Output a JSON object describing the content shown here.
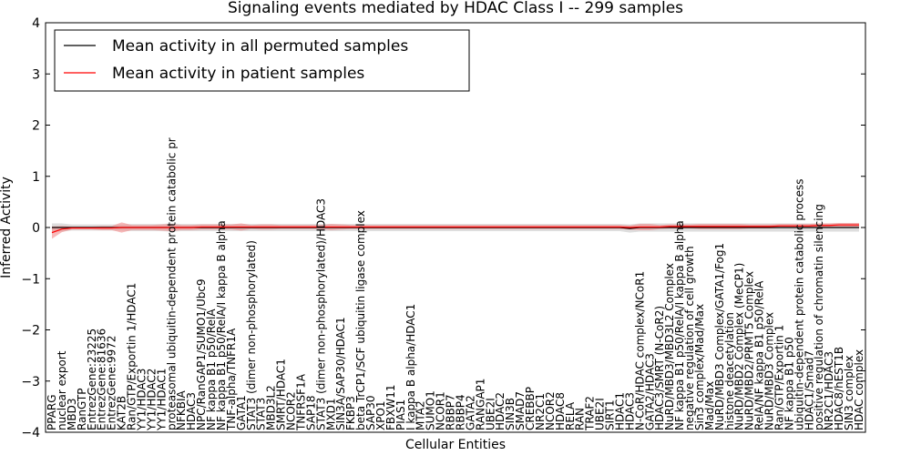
{
  "chart_data": {
    "type": "line",
    "title": "Signaling events mediated by HDAC Class I -- 299 samples",
    "xlabel": "Cellular Entities",
    "ylabel": "Inferred Activity",
    "ylim": [
      -4,
      4
    ],
    "yticks": [
      "4",
      "3",
      "2",
      "1",
      "0",
      "−1",
      "−2",
      "−3",
      "−4"
    ],
    "grid": false,
    "legend_position": "top-left",
    "colors": {
      "permuted": "#000000",
      "patient": "#ff0000",
      "patient_band": "#f08080",
      "permuted_band": "#c8c8c8"
    },
    "categories": [
      "PPARG",
      "nuclear export",
      "MBD3",
      "RanGTP",
      "EntrezGene:23225",
      "EntrezGene:81636",
      "EntrezGene:9972",
      "KAT2B",
      "Ran/GTP/Exportin 1/HDAC1",
      "YY1/HDAC3",
      "YY1/HDAC2",
      "YY1/HDAC1",
      "proteasomal ubiquitin-dependent protein catabolic pr",
      "NFKBIA",
      "HDAC3",
      "NPC/RanGAP1/SUMO1/Ubc9",
      "NF kappa B1 p50/RelA",
      "NF kappa B1 p50/RelA/I kappa B alpha",
      "TNF-alpha/TNFR1A",
      "GATA1",
      "STAT3 (dimer non-phosphorylated)",
      "STAT3",
      "MBD3L2",
      "SMRT/HDAC1",
      "NCOR2",
      "TNFRSF1A",
      "SAP18",
      "STAT3 (dimer non-phosphorylated)/HDAC3",
      "MXD1",
      "SIN3A/SAP30/HDAC1",
      "FKBP3",
      "beta TrCP1/SCF ubiquitin ligase complex",
      "SAP30",
      "XPO1",
      "FBXW11",
      "PIAS1",
      "I kappa B alpha/HDAC1",
      "MTA2",
      "SUMO1",
      "NCOR1",
      "RBBP7",
      "RBBP4",
      "GATA2",
      "RANGAP1",
      "UBE2I",
      "HDAC2",
      "SIN3B",
      "SMAD7",
      "CREBBP",
      "NR2C1",
      "NCOR2",
      "HDAC8",
      "RELA",
      "RAN",
      "TRAF2",
      "UBE2I",
      "SIRT1",
      "HDAC1",
      "HDAC3",
      "N-CoR/HDAC complex/NCoR1",
      "GATA2/HDAC3",
      "HDAC3/SMRT (N-CoR2)",
      "NuRD/MBD3/MBD3L2 Complex",
      "NF kappa B1 p50/RelA/I kappa B alpha",
      "negative regulation of cell growth",
      "Sin3 complex/Mad/Max",
      "Mad/Max",
      "NuRD/MBD3 Complex/GATA1/Fog1",
      "histone deacetylation",
      "NuRD/MBD2 Complex (MeCP1)",
      "NuRD/MBD2/PRMT5 Complex",
      "RelA/NF kappa B1 p50/RelA",
      "NuRD/MBD3 Complex",
      "Ran/GTP/Exportin 1",
      "NF kappa B1 p50",
      "ubiquitin-dependent protein catabolic process",
      "HDAC1/Smad7",
      "positive regulation of chromatin silencing",
      "NR2C1/HDAC3",
      "HDAC8/hEST1B",
      "SIN3 complex",
      "HDAC complex"
    ],
    "series": [
      {
        "name": "Mean activity in all permuted samples",
        "values": [
          0,
          0,
          0,
          0,
          0,
          0,
          0,
          0,
          0,
          0,
          0,
          0,
          0,
          0,
          0,
          0,
          0,
          0,
          0,
          0,
          0,
          0,
          0,
          0,
          0,
          0,
          0,
          0,
          0,
          0,
          0,
          0,
          0,
          0,
          0,
          0,
          0,
          0,
          0,
          0,
          0,
          0,
          0,
          0,
          0,
          0,
          0,
          0,
          0,
          0,
          0,
          0,
          0,
          0,
          0,
          0,
          0,
          0,
          -0.02,
          0,
          0,
          0,
          0,
          0,
          0,
          0,
          0,
          0,
          0,
          0,
          0,
          0,
          0,
          0,
          0,
          0,
          0,
          0,
          0,
          0,
          0,
          0
        ],
        "band": [
          0.08,
          0.08,
          0.06,
          0.06,
          0.06,
          0.06,
          0.06,
          0.06,
          0.07,
          0.07,
          0.07,
          0.07,
          0.08,
          0.07,
          0.07,
          0.07,
          0.07,
          0.07,
          0.07,
          0.07,
          0.07,
          0.07,
          0.07,
          0.07,
          0.07,
          0.07,
          0.07,
          0.07,
          0.07,
          0.07,
          0.07,
          0.07,
          0.07,
          0.07,
          0.07,
          0.07,
          0.07,
          0.07,
          0.07,
          0.07,
          0.07,
          0.07,
          0.07,
          0.07,
          0.07,
          0.07,
          0.07,
          0.07,
          0.07,
          0.07,
          0.07,
          0.07,
          0.07,
          0.07,
          0.07,
          0.07,
          0.07,
          0.07,
          0.08,
          0.08,
          0.08,
          0.08,
          0.08,
          0.08,
          0.08,
          0.08,
          0.08,
          0.08,
          0.08,
          0.08,
          0.08,
          0.08,
          0.08,
          0.08,
          0.08,
          0.08,
          0.08,
          0.08,
          0.08,
          0.08,
          0.08,
          0.08
        ]
      },
      {
        "name": "Mean activity in patient samples",
        "values": [
          -0.1,
          -0.03,
          -0.01,
          -0.01,
          -0.01,
          -0.01,
          -0.01,
          0,
          0,
          0,
          0,
          0,
          0,
          0,
          0,
          0.01,
          0.01,
          0.01,
          0.01,
          0.01,
          0.01,
          0.01,
          0.01,
          0.01,
          0.01,
          0.01,
          0.01,
          0.01,
          0.01,
          0.01,
          0.01,
          0.01,
          0.01,
          0.01,
          0.01,
          0.01,
          0.01,
          0.01,
          0.01,
          0.01,
          0.01,
          0.01,
          0.01,
          0.01,
          0.01,
          0.01,
          0.01,
          0.01,
          0.01,
          0.01,
          0.01,
          0.01,
          0.01,
          0.01,
          0.01,
          0.01,
          0.01,
          0.01,
          0,
          0.01,
          0.01,
          0.01,
          0.02,
          0.02,
          0.02,
          0.02,
          0.02,
          0.02,
          0.02,
          0.02,
          0.02,
          0.02,
          0.02,
          0.03,
          0.03,
          0.03,
          0.03,
          0.04,
          0.04,
          0.05,
          0.05,
          0.05
        ],
        "band": [
          0.12,
          0.06,
          0.03,
          0.03,
          0.03,
          0.04,
          0.04,
          0.1,
          0.05,
          0.05,
          0.05,
          0.06,
          0.07,
          0.05,
          0.05,
          0.05,
          0.05,
          0.05,
          0.05,
          0.07,
          0.04,
          0.05,
          0.05,
          0.04,
          0.04,
          0.04,
          0.04,
          0.04,
          0.06,
          0.05,
          0.04,
          0.04,
          0.04,
          0.04,
          0.04,
          0.04,
          0.04,
          0.04,
          0.04,
          0.04,
          0.04,
          0.04,
          0.04,
          0.04,
          0.04,
          0.04,
          0.04,
          0.04,
          0.04,
          0.04,
          0.04,
          0.04,
          0.04,
          0.04,
          0.04,
          0.04,
          0.04,
          0.04,
          0.04,
          0.06,
          0.06,
          0.04,
          0.04,
          0.04,
          0.04,
          0.05,
          0.05,
          0.05,
          0.05,
          0.05,
          0.04,
          0.04,
          0.04,
          0.04,
          0.04,
          0.04,
          0.04,
          0.04,
          0.04,
          0.04,
          0.04,
          0.04
        ]
      }
    ]
  }
}
